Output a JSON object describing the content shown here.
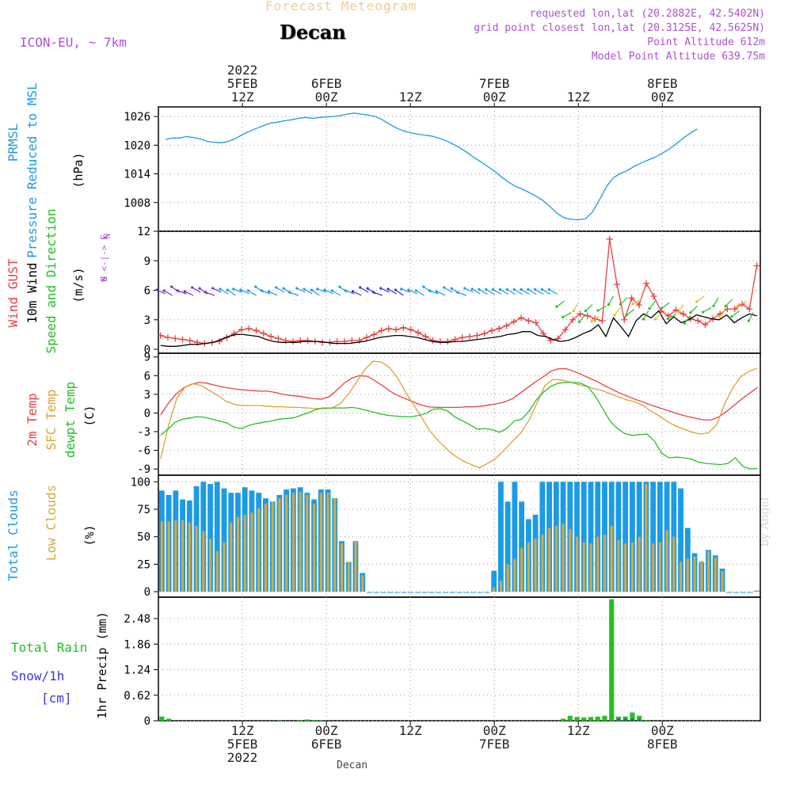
{
  "header": {
    "super_title": "Forecast Meteogram",
    "location": "Decan",
    "model": "ICON-EU, ~ 7km",
    "requested": "requested lon,lat (20.2882E, 42.5402N)",
    "grid_point": "grid point closest lon,lat (20.3125E, 42.5625N)",
    "point_altitude": "Point Altitude 612m",
    "model_altitude": "Model Point Altitude 639.75m",
    "watermark": "by Angel",
    "footer": "Decan"
  },
  "time_axis": {
    "top_labels": [
      {
        "t": 12,
        "lines": [
          "2022",
          "5FEB",
          "12Z"
        ]
      },
      {
        "t": 24,
        "lines": [
          "6FEB",
          "00Z"
        ]
      },
      {
        "t": 36,
        "lines": [
          "12Z"
        ]
      },
      {
        "t": 48,
        "lines": [
          "7FEB",
          "00Z"
        ]
      },
      {
        "t": 60,
        "lines": [
          "12Z"
        ]
      },
      {
        "t": 72,
        "lines": [
          "8FEB",
          "00Z"
        ]
      }
    ],
    "bottom_labels": [
      {
        "t": 12,
        "lines": [
          "12Z",
          "5FEB",
          "2022"
        ]
      },
      {
        "t": 24,
        "lines": [
          "00Z",
          "6FEB"
        ]
      },
      {
        "t": 36,
        "lines": [
          "12Z"
        ]
      },
      {
        "t": 48,
        "lines": [
          "00Z",
          "7FEB"
        ]
      },
      {
        "t": 60,
        "lines": [
          "12Z"
        ]
      },
      {
        "t": 72,
        "lines": [
          "00Z",
          "8FEB"
        ]
      }
    ]
  },
  "colors": {
    "pressure": "#1a9be6",
    "gust": "#e84040",
    "wind": "#000000",
    "dir": "#22c022",
    "temp": "#e84040",
    "sfc": "#e0a030",
    "dewpt": "#22c022",
    "total_clouds": "#1a9be6",
    "low_clouds": "#d8a840",
    "rain": "#22c022",
    "snow": "#3a3ae0",
    "purple": "#b050d0"
  },
  "chart_data": [
    {
      "type": "line",
      "title": "PRMSL",
      "ylabel_lines": [
        "PRMSL",
        "Pressure Reduced to MSL",
        "(hPa)"
      ],
      "yticks": [
        1008,
        1014,
        1020,
        1026
      ],
      "ylim": [
        1002,
        1028
      ],
      "x": [
        1,
        2,
        3,
        4,
        5,
        6,
        7,
        8,
        9,
        10,
        11,
        12,
        13,
        14,
        15,
        16,
        17,
        18,
        19,
        20,
        21,
        22,
        23,
        24,
        25,
        26,
        27,
        28,
        29,
        30,
        31,
        32,
        33,
        34,
        35,
        36,
        37,
        38,
        39,
        40,
        41,
        42,
        43,
        44,
        45,
        46,
        47,
        48,
        49,
        50,
        51,
        52,
        53,
        54,
        55,
        56,
        57,
        58,
        59,
        60,
        61,
        62,
        63,
        64,
        65,
        66,
        67,
        68,
        69,
        70,
        71,
        72,
        73,
        74,
        75,
        76,
        77
      ],
      "series": [
        {
          "name": "PRMSL",
          "values": [
            1021.2,
            1021.5,
            1021.5,
            1021.8,
            1021.6,
            1021.3,
            1020.8,
            1020.6,
            1020.5,
            1020.8,
            1021.4,
            1022.2,
            1022.9,
            1023.5,
            1024.1,
            1024.6,
            1024.8,
            1025.1,
            1025.3,
            1025.6,
            1025.8,
            1025.6,
            1025.8,
            1025.9,
            1026.0,
            1026.2,
            1026.5,
            1026.7,
            1026.5,
            1026.3,
            1026.0,
            1025.3,
            1024.4,
            1023.6,
            1023.0,
            1022.6,
            1022.3,
            1022.1,
            1021.9,
            1021.5,
            1021.0,
            1020.3,
            1019.5,
            1018.6,
            1017.5,
            1016.6,
            1015.6,
            1014.6,
            1013.4,
            1012.3,
            1011.4,
            1010.8,
            1010.1,
            1009.3,
            1008.4,
            1007.1,
            1005.7,
            1004.8,
            1004.5,
            1004.4,
            1004.6,
            1006.0,
            1008.5,
            1011.3,
            1013.2,
            1014.1,
            1014.7,
            1015.6,
            1016.3,
            1016.9,
            1017.5,
            1018.3,
            1019.2,
            1020.3,
            1021.5,
            1022.5,
            1023.4
          ]
        }
      ]
    },
    {
      "type": "line",
      "title": "Wind",
      "ylabel_lines": [
        "Wind GUST",
        "10m Wind",
        "Speed and Direction",
        "(m/s)"
      ],
      "compass": [
        "N",
        "W <-|-> E",
        "S"
      ],
      "yticks": [
        0,
        3,
        6,
        9,
        12
      ],
      "ylim": [
        -0.4,
        12
      ],
      "series": [
        {
          "name": "Wind GUST",
          "values": [
            1.4,
            1.2,
            1.1,
            1.0,
            0.9,
            0.7,
            0.6,
            0.7,
            0.8,
            1.2,
            1.6,
            2.0,
            2.1,
            1.9,
            1.6,
            1.3,
            1.1,
            0.9,
            0.8,
            0.9,
            0.9,
            0.8,
            0.7,
            0.7,
            0.8,
            0.8,
            0.9,
            0.9,
            1.2,
            1.5,
            1.9,
            2.1,
            2.0,
            2.2,
            2.0,
            1.7,
            1.3,
            0.9,
            0.8,
            0.8,
            1.0,
            1.2,
            1.3,
            1.4,
            1.6,
            1.9,
            2.1,
            2.4,
            2.8,
            3.2,
            2.9,
            2.7,
            1.6,
            0.9,
            1.1,
            2.0,
            3.0,
            3.6,
            3.4,
            3.1,
            2.9,
            11.2,
            6.6,
            3.0,
            5.2,
            4.5,
            6.7,
            5.4,
            3.9,
            3.4,
            4.0,
            3.6,
            3.1,
            2.9,
            2.5,
            3.1,
            3.6,
            4.1,
            4.1,
            4.6,
            4.1,
            8.5
          ]
        },
        {
          "name": "10m Wind",
          "values": [
            0.4,
            0.3,
            0.3,
            0.4,
            0.5,
            0.5,
            0.6,
            0.7,
            1.0,
            1.3,
            1.5,
            1.5,
            1.4,
            1.3,
            1.0,
            0.8,
            0.7,
            0.7,
            0.7,
            0.8,
            0.8,
            0.8,
            0.7,
            0.6,
            0.6,
            0.6,
            0.7,
            0.8,
            1.0,
            1.2,
            1.3,
            1.4,
            1.4,
            1.3,
            1.2,
            1.0,
            0.8,
            0.7,
            0.7,
            0.8,
            0.8,
            0.9,
            1.0,
            1.1,
            1.2,
            1.3,
            1.5,
            1.6,
            1.8,
            1.8,
            1.4,
            1.3,
            1.0,
            0.8,
            0.9,
            1.2,
            1.6,
            1.9,
            2.5,
            1.3,
            3.2,
            2.3,
            1.3,
            2.9,
            3.6,
            3.2,
            3.9,
            2.6,
            3.3,
            2.7,
            3.0,
            3.5,
            3.3,
            3.1,
            3.0,
            3.5,
            2.7,
            3.2,
            3.6,
            3.4
          ]
        }
      ]
    },
    {
      "type": "line",
      "title": "Temperature",
      "ylabel_lines": [
        "2m Temp",
        "SFC Temp",
        "dewpt Temp",
        "(C)"
      ],
      "yticks": [
        -9,
        -6,
        -3,
        0,
        3,
        6,
        9
      ],
      "ylim": [
        -10,
        9.6
      ],
      "series": [
        {
          "name": "2m Temp",
          "values": [
            -0.3,
            1.5,
            3.0,
            4.0,
            4.6,
            4.9,
            4.8,
            4.5,
            4.2,
            4.0,
            3.8,
            3.7,
            3.6,
            3.5,
            3.5,
            3.3,
            3.0,
            2.8,
            2.7,
            2.5,
            2.3,
            2.2,
            2.6,
            3.6,
            4.8,
            5.6,
            6.0,
            5.9,
            5.2,
            4.4,
            3.5,
            2.8,
            2.3,
            1.8,
            1.3,
            1.0,
            0.9,
            0.9,
            0.9,
            0.9,
            1.0,
            1.0,
            1.1,
            1.3,
            1.5,
            1.8,
            2.3,
            3.2,
            4.1,
            5.0,
            5.8,
            6.7,
            7.1,
            7.1,
            6.7,
            6.2,
            5.6,
            5.1,
            4.4,
            3.8,
            3.2,
            2.7,
            2.2,
            1.8,
            1.3,
            0.9,
            0.5,
            0.1,
            -0.3,
            -0.6,
            -0.9,
            -1.1,
            -1.1,
            -0.6,
            0.3,
            1.3,
            2.3,
            3.2,
            4.1
          ]
        },
        {
          "name": "SFC Temp",
          "values": [
            -7.4,
            -1.9,
            2.4,
            4.1,
            4.7,
            4.4,
            3.6,
            2.8,
            1.9,
            1.4,
            1.2,
            1.2,
            1.2,
            1.1,
            1.0,
            1.0,
            0.9,
            0.9,
            0.8,
            0.7,
            0.7,
            0.8,
            1.5,
            3.1,
            5.0,
            7.0,
            8.3,
            8.2,
            7.3,
            5.6,
            3.3,
            1.2,
            -0.9,
            -3.0,
            -4.5,
            -5.8,
            -6.9,
            -7.7,
            -8.3,
            -8.8,
            -8.1,
            -7.3,
            -6.0,
            -4.6,
            -3.3,
            -1.3,
            1.5,
            4.4,
            5.4,
            5.3,
            5.0,
            4.6,
            4.3,
            3.9,
            3.6,
            3.1,
            2.6,
            2.1,
            1.8,
            1.2,
            0.3,
            -0.5,
            -1.4,
            -2.1,
            -2.6,
            -3.1,
            -3.4,
            -3.2,
            -1.9,
            1.5,
            4.1,
            5.9,
            6.7,
            7.2
          ]
        },
        {
          "name": "dewpt Temp",
          "values": [
            -3.6,
            -2.6,
            -1.5,
            -1.0,
            -0.8,
            -0.6,
            -0.7,
            -1.0,
            -1.3,
            -1.6,
            -2.3,
            -2.5,
            -2.0,
            -1.7,
            -1.5,
            -1.3,
            -1.0,
            -0.9,
            -0.8,
            -0.4,
            0.0,
            0.5,
            0.8,
            0.8,
            0.8,
            0.8,
            0.9,
            0.7,
            0.4,
            0.1,
            -0.2,
            -0.4,
            -0.5,
            -0.6,
            -0.6,
            -0.4,
            -0.1,
            0.6,
            0.7,
            0.3,
            -0.7,
            -1.3,
            -1.9,
            -2.6,
            -2.5,
            -2.7,
            -3.1,
            -2.5,
            -1.3,
            -1.0,
            0.3,
            2.1,
            3.4,
            4.3,
            4.8,
            4.9,
            4.9,
            4.8,
            4.2,
            2.7,
            0.7,
            -1.3,
            -2.5,
            -3.3,
            -3.6,
            -3.5,
            -3.4,
            -4.5,
            -6.5,
            -7.2,
            -7.1,
            -7.2,
            -7.4,
            -7.9,
            -8.1,
            -8.2,
            -8.3,
            -8.1,
            -7.2,
            -8.6,
            -9.0,
            -8.9
          ]
        }
      ]
    },
    {
      "type": "bar",
      "title": "Clouds",
      "ylabel_lines": [
        "Total Clouds",
        "Low Clouds",
        "(%)"
      ],
      "yticks": [
        0,
        25,
        50,
        75,
        100
      ],
      "ylim": [
        -5,
        106
      ],
      "series": [
        {
          "name": "Total Clouds",
          "values": [
            92,
            88,
            92,
            84,
            83,
            96,
            100,
            98,
            100,
            94,
            90,
            90,
            95,
            92,
            90,
            85,
            82,
            88,
            93,
            94,
            95,
            90,
            84,
            93,
            93,
            85,
            46,
            27,
            46,
            17,
            0,
            0,
            0,
            0,
            0,
            0,
            0,
            0,
            0,
            0,
            0,
            0,
            0,
            0,
            0,
            0,
            0,
            0,
            19,
            100,
            82,
            100,
            82,
            66,
            70,
            100,
            100,
            100,
            100,
            100,
            100,
            100,
            100,
            100,
            100,
            100,
            100,
            100,
            100,
            100,
            100,
            100,
            100,
            100,
            100,
            94,
            58,
            35,
            27,
            38,
            33,
            21,
            0,
            0,
            0,
            0,
            1
          ]
        },
        {
          "name": "Low Clouds",
          "values": [
            64,
            64,
            65,
            65,
            63,
            60,
            55,
            48,
            37,
            45,
            63,
            68,
            70,
            72,
            76,
            80,
            82,
            85,
            88,
            90,
            91,
            88,
            80,
            90,
            90,
            85,
            44,
            27,
            46,
            15,
            0,
            0,
            0,
            0,
            0,
            0,
            0,
            0,
            0,
            0,
            0,
            0,
            0,
            0,
            0,
            0,
            0,
            0,
            4,
            10,
            25,
            30,
            40,
            45,
            48,
            52,
            58,
            60,
            62,
            57,
            50,
            45,
            44,
            50,
            52,
            60,
            47,
            44,
            45,
            50,
            98,
            44,
            45,
            56,
            50,
            27,
            30,
            32,
            28,
            37,
            31,
            19,
            0,
            0,
            0,
            0,
            1
          ]
        }
      ]
    },
    {
      "type": "bar",
      "title": "Precipitation",
      "ylabel_lines": [
        "1hr Precip (mm)"
      ],
      "legend_lines": [
        "Total  Rain",
        "Snow/1h",
        "[cm]"
      ],
      "yticks": [
        0,
        0.62,
        1.24,
        1.86,
        2.48
      ],
      "ylim": [
        0,
        3.0
      ],
      "series": [
        {
          "name": "Total Rain",
          "values": [
            0.1,
            0.05,
            0,
            0,
            0,
            0,
            0,
            0,
            0,
            0,
            0,
            0,
            0,
            0,
            0,
            0,
            0,
            0.01,
            0,
            0,
            0.02,
            0.03,
            0.02,
            0.01,
            0,
            0,
            0,
            0,
            0,
            0,
            0,
            0,
            0,
            0,
            0,
            0,
            0,
            0,
            0,
            0,
            0,
            0,
            0,
            0,
            0,
            0,
            0,
            0,
            0,
            0,
            0,
            0,
            0,
            0,
            0,
            0,
            0,
            0,
            0.05,
            0.12,
            0.09,
            0.08,
            0.09,
            0.1,
            0.12,
            2.95,
            0.1,
            0.1,
            0.2,
            0.12,
            0.02,
            0,
            0,
            0,
            0,
            0,
            0,
            0,
            0,
            0,
            0,
            0,
            0,
            0,
            0,
            0,
            0
          ]
        },
        {
          "name": "Snow/1h",
          "values": [
            0,
            0,
            0,
            0,
            0,
            0,
            0,
            0,
            0,
            0,
            0,
            0,
            0,
            0,
            0,
            0,
            0,
            0,
            0,
            0,
            0,
            0,
            0,
            0,
            0,
            0,
            0,
            0,
            0,
            0,
            0,
            0,
            0,
            0,
            0,
            0,
            0,
            0,
            0,
            0,
            0,
            0,
            0,
            0,
            0,
            0,
            0,
            0,
            0,
            0,
            0,
            0,
            0,
            0,
            0,
            0,
            0,
            0,
            0,
            0,
            0,
            0,
            0,
            0,
            0,
            0,
            0.05,
            0.05,
            0.05,
            0.03,
            0,
            0,
            0,
            0,
            0,
            0,
            0,
            0,
            0,
            0,
            0,
            0,
            0,
            0,
            0,
            0,
            0
          ]
        }
      ]
    }
  ]
}
